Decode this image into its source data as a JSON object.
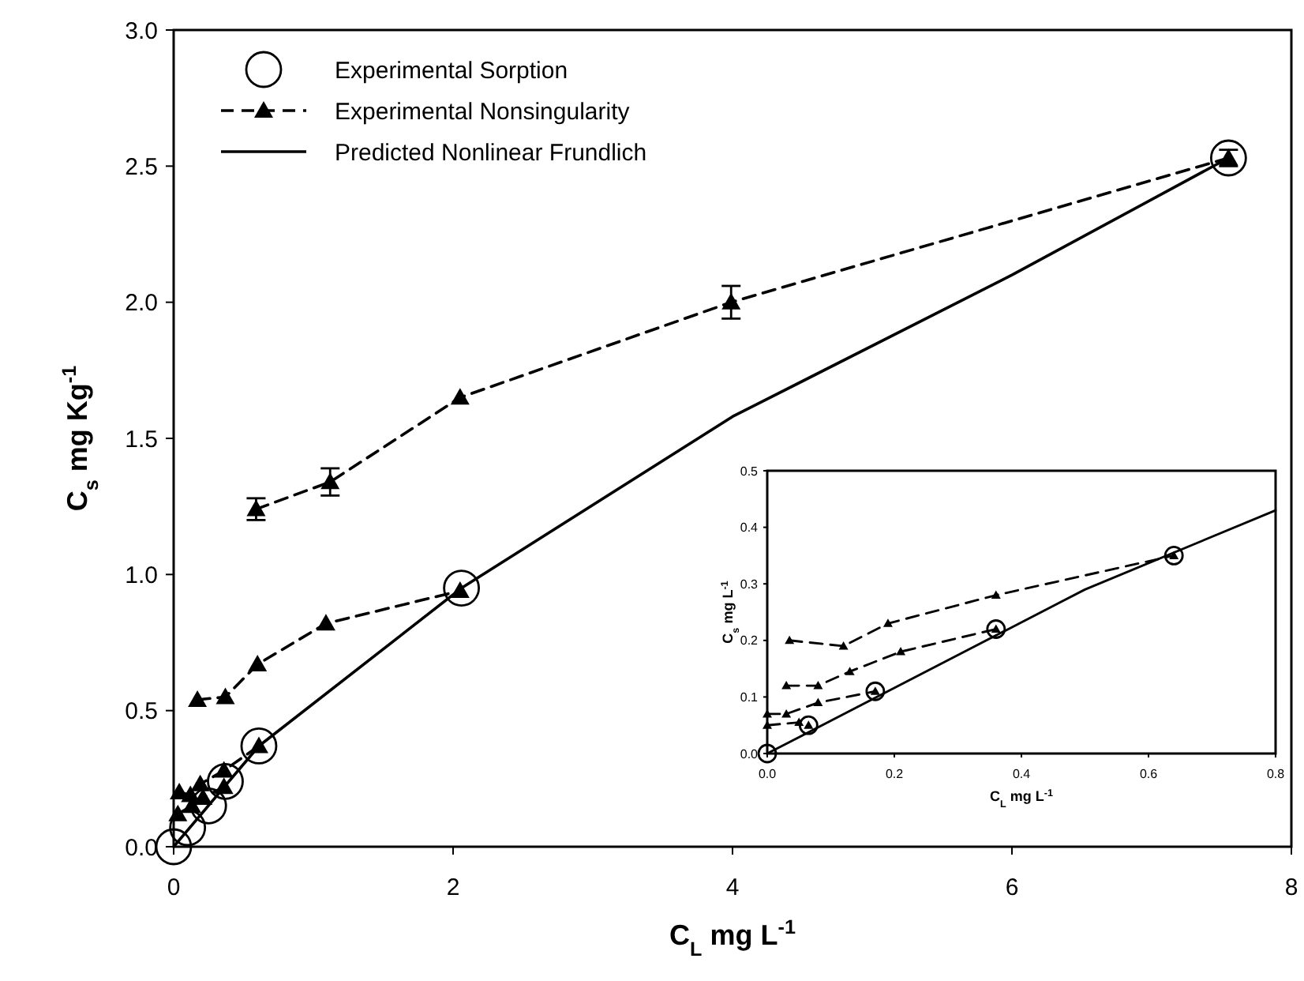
{
  "chart_data": [
    {
      "type": "line",
      "xlabel": "C$_{L}$ mg L$^{-1}$",
      "ylabel": "C$_{s}$ mg Kg$^{-1}$",
      "xlim": [
        0,
        8
      ],
      "xticks": [
        0,
        2,
        4,
        6,
        8
      ],
      "ylim": [
        0,
        3
      ],
      "yticks": [
        {
          "value": 0,
          "label": "0.0"
        },
        {
          "value": 0.5,
          "label": "0.5"
        },
        {
          "value": 1,
          "label": "1.0"
        },
        {
          "value": 1.5,
          "label": "1.5"
        },
        {
          "value": 2,
          "label": "2.0"
        },
        {
          "value": 2.5,
          "label": "2.5"
        },
        {
          "value": 3,
          "label": "3.0"
        }
      ],
      "legend": "top left",
      "series": [
        {
          "name": "Experimental Sorption",
          "type": "scatter",
          "marker": "circle",
          "color": "#000000",
          "x": [
            0,
            0.1,
            0.25,
            0.37,
            0.61,
            2.06,
            7.55
          ],
          "values": [
            0,
            0.07,
            0.15,
            0.24,
            0.37,
            0.95,
            2.53
          ]
        },
        {
          "name": "Experimental Nonsingularity",
          "marker": "triangle",
          "line_style": "dashed",
          "color": "#000000",
          "x": [
            0.59,
            1.12,
            2.05,
            3.99,
            7.55
          ],
          "values": [
            1.24,
            1.34,
            1.65,
            2.0,
            2.53
          ],
          "errors": [
            0.04,
            0.05,
            null,
            0.06,
            0.03
          ]
        },
        {
          "marker": "triangle",
          "line_style": "dashed",
          "color": "#000000",
          "x": [
            0.17,
            0.37,
            0.6,
            1.09,
            2.05
          ],
          "values": [
            0.54,
            0.55,
            0.67,
            0.82,
            0.94
          ]
        },
        {
          "marker": "triangle",
          "line_style": "dashed",
          "color": "#000000",
          "x": [
            0.04,
            0.12,
            0.19,
            0.36,
            0.61
          ],
          "values": [
            0.2,
            0.19,
            0.23,
            0.28,
            0.37
          ]
        },
        {
          "marker": "triangle",
          "line_style": "dashed",
          "color": "#000000",
          "x": [
            0.03,
            0.13,
            0.21,
            0.36
          ],
          "values": [
            0.12,
            0.15,
            0.18,
            0.22
          ]
        },
        {
          "name": "Predicted Nonlinear Frundlich",
          "marker": "none",
          "line_style": "solid",
          "color": "#000000",
          "x": [
            0,
            0.61,
            2.06,
            4,
            6,
            7.55
          ],
          "values": [
            0,
            0.37,
            0.95,
            1.58,
            2.1,
            2.53
          ]
        }
      ]
    },
    {
      "type": "line",
      "xlabel": "C$_{L}$ mg L$^{-1}$",
      "ylabel": "C$_{s}$ mg L$^{-1}$",
      "xlim": [
        0,
        0.8
      ],
      "xticks": [
        {
          "value": 0,
          "label": "0.0"
        },
        {
          "value": 0.2,
          "label": "0.2"
        },
        {
          "value": 0.4,
          "label": "0.4"
        },
        {
          "value": 0.6,
          "label": "0.6"
        },
        {
          "value": 0.8,
          "label": "0.8"
        }
      ],
      "ylim": [
        0,
        0.5
      ],
      "yticks": [
        {
          "value": 0,
          "label": "0.0"
        },
        {
          "value": 0.1,
          "label": "0.1"
        },
        {
          "value": 0.2,
          "label": "0.2"
        },
        {
          "value": 0.3,
          "label": "0.3"
        },
        {
          "value": 0.4,
          "label": "0.4"
        },
        {
          "value": 0.5,
          "label": "0.5"
        }
      ],
      "series": [
        {
          "type": "scatter",
          "marker": "circle",
          "color": "#000000",
          "x": [
            0,
            0.065,
            0.17,
            0.36,
            0.64
          ],
          "values": [
            0,
            0.05,
            0.11,
            0.22,
            0.35
          ]
        },
        {
          "marker": "none",
          "line_style": "solid",
          "color": "#000000",
          "x": [
            0,
            0.5,
            0.8
          ],
          "values": [
            0,
            0.29,
            0.43
          ]
        },
        {
          "marker": "triangle",
          "line_style": "dashed",
          "color": "#000000",
          "x": [
            0.035,
            0.12,
            0.19,
            0.36,
            0.64
          ],
          "values": [
            0.2,
            0.19,
            0.23,
            0.28,
            0.35
          ]
        },
        {
          "marker": "triangle",
          "line_style": "dashed",
          "color": "#000000",
          "x": [
            0.03,
            0.08,
            0.13,
            0.21,
            0.36
          ],
          "values": [
            0.12,
            0.12,
            0.145,
            0.18,
            0.22
          ]
        },
        {
          "marker": "triangle",
          "line_style": "dashed",
          "color": "#000000",
          "x": [
            0,
            0.03,
            0.08,
            0.17
          ],
          "values": [
            0.07,
            0.07,
            0.09,
            0.11
          ]
        },
        {
          "marker": "triangle",
          "line_style": "dashed",
          "color": "#000000",
          "x": [
            0,
            0.05,
            0.065
          ],
          "values": [
            0.05,
            0.055,
            0.05
          ]
        }
      ]
    }
  ]
}
